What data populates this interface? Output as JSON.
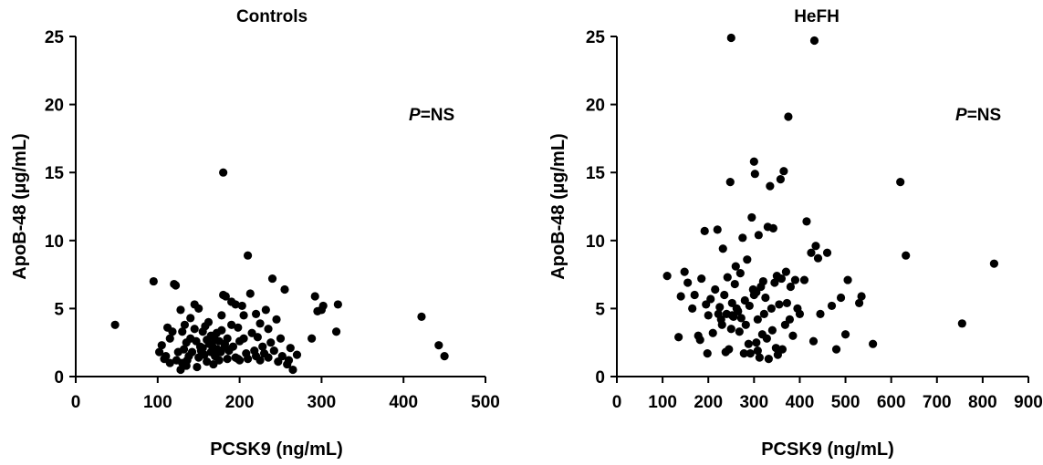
{
  "chart_data": [
    {
      "type": "scatter",
      "title": "Controls",
      "xlabel": "PCSK9 (ng/mL)",
      "ylabel": "ApoB-48 (µg/mL)",
      "xlim": [
        0,
        500
      ],
      "ylim": [
        0,
        25
      ],
      "xticks": [
        0,
        100,
        200,
        300,
        400,
        500
      ],
      "yticks": [
        0,
        5,
        10,
        15,
        20,
        25
      ],
      "annotation": {
        "italic": "P",
        "rest": "=NS"
      },
      "points_color": "#000000",
      "x": [
        48,
        95,
        102,
        105,
        108,
        110,
        112,
        115,
        115,
        118,
        120,
        122,
        123,
        125,
        128,
        128,
        130,
        130,
        132,
        133,
        135,
        135,
        136,
        138,
        140,
        140,
        142,
        145,
        145,
        147,
        148,
        150,
        150,
        152,
        153,
        155,
        155,
        157,
        158,
        160,
        160,
        162,
        163,
        165,
        165,
        167,
        168,
        170,
        170,
        172,
        173,
        175,
        175,
        177,
        178,
        180,
        180,
        182,
        183,
        185,
        185,
        187,
        190,
        190,
        192,
        195,
        195,
        198,
        200,
        200,
        203,
        205,
        205,
        208,
        210,
        210,
        213,
        215,
        218,
        220,
        220,
        222,
        225,
        225,
        228,
        230,
        232,
        235,
        235,
        238,
        240,
        242,
        245,
        247,
        250,
        252,
        255,
        258,
        260,
        262,
        265,
        270,
        288,
        292,
        295,
        300,
        302,
        318,
        320,
        422,
        443,
        450,
        178,
        182,
        198
      ],
      "y": [
        3.8,
        7.0,
        1.8,
        2.3,
        1.3,
        1.5,
        3.6,
        2.8,
        1.0,
        3.3,
        6.8,
        6.7,
        1.2,
        1.8,
        0.5,
        4.9,
        3.3,
        1.0,
        2.0,
        3.8,
        2.5,
        0.8,
        1.2,
        1.5,
        2.8,
        4.3,
        1.8,
        5.3,
        3.5,
        2.6,
        0.7,
        5.0,
        1.4,
        2.2,
        1.9,
        3.3,
        2.1,
        1.6,
        3.7,
        2.7,
        1.1,
        4.0,
        2.4,
        3.0,
        1.8,
        2.2,
        0.9,
        2.7,
        1.5,
        3.2,
        2.0,
        1.2,
        2.6,
        1.8,
        3.4,
        15.0,
        6.0,
        2.4,
        5.9,
        2.8,
        1.3,
        1.9,
        3.8,
        5.5,
        2.2,
        5.3,
        1.4,
        3.6,
        2.6,
        1.2,
        5.2,
        4.5,
        2.8,
        1.7,
        8.9,
        1.3,
        6.1,
        3.2,
        1.9,
        4.6,
        1.5,
        2.9,
        3.9,
        1.2,
        2.2,
        1.7,
        4.9,
        3.5,
        1.4,
        2.5,
        7.2,
        1.9,
        4.2,
        1.1,
        2.8,
        1.5,
        6.4,
        0.9,
        1.2,
        2.1,
        0.5,
        1.6,
        2.8,
        5.9,
        4.8,
        4.9,
        5.2,
        3.3,
        5.3,
        4.4,
        2.3,
        1.5,
        4.5,
        2.2,
        1.3
      ]
    },
    {
      "type": "scatter",
      "title": "HeFH",
      "xlabel": "PCSK9 (ng/mL)",
      "ylabel": "ApoB-48 (µg/mL)",
      "xlim": [
        0,
        900
      ],
      "ylim": [
        0,
        25
      ],
      "xticks": [
        0,
        100,
        200,
        300,
        400,
        500,
        600,
        700,
        800,
        900
      ],
      "yticks": [
        0,
        5,
        10,
        15,
        20,
        25
      ],
      "annotation": {
        "italic": "P",
        "rest": "=NS"
      },
      "points_color": "#000000",
      "x": [
        110,
        135,
        140,
        148,
        155,
        165,
        170,
        178,
        182,
        185,
        192,
        195,
        198,
        200,
        205,
        210,
        215,
        220,
        222,
        225,
        228,
        230,
        232,
        235,
        238,
        240,
        242,
        245,
        248,
        250,
        252,
        255,
        258,
        260,
        262,
        265,
        268,
        270,
        272,
        275,
        278,
        280,
        282,
        285,
        288,
        290,
        292,
        295,
        298,
        300,
        302,
        305,
        305,
        308,
        310,
        312,
        315,
        318,
        320,
        322,
        325,
        328,
        330,
        332,
        335,
        338,
        340,
        342,
        345,
        348,
        350,
        352,
        355,
        358,
        360,
        362,
        365,
        368,
        370,
        372,
        375,
        378,
        380,
        385,
        390,
        395,
        400,
        410,
        415,
        425,
        430,
        432,
        435,
        440,
        445,
        460,
        470,
        480,
        490,
        500,
        505,
        530,
        535,
        560,
        620,
        632,
        755,
        825,
        250,
        252,
        300,
        308
      ],
      "y": [
        7.4,
        2.9,
        5.9,
        7.7,
        6.9,
        5.0,
        6.0,
        3.0,
        2.7,
        7.2,
        10.7,
        5.3,
        1.7,
        4.5,
        5.7,
        3.2,
        6.4,
        10.8,
        4.6,
        5.1,
        4.2,
        3.8,
        9.4,
        6.0,
        1.8,
        4.6,
        7.3,
        2.0,
        14.3,
        3.5,
        5.4,
        4.4,
        6.8,
        8.1,
        5.0,
        4.8,
        3.3,
        7.6,
        4.3,
        10.2,
        1.7,
        5.6,
        3.8,
        8.6,
        2.4,
        5.2,
        1.7,
        11.7,
        6.4,
        15.8,
        14.9,
        2.5,
        6.2,
        4.2,
        10.4,
        1.4,
        6.6,
        3.1,
        7.0,
        4.6,
        5.8,
        2.8,
        11.0,
        1.3,
        14.0,
        5.0,
        3.4,
        10.9,
        6.9,
        2.1,
        7.4,
        1.6,
        5.3,
        14.5,
        7.2,
        2.0,
        15.1,
        3.8,
        7.7,
        5.4,
        19.1,
        4.2,
        6.6,
        3.0,
        7.1,
        5.0,
        4.6,
        7.1,
        11.4,
        9.1,
        2.6,
        24.7,
        9.6,
        8.7,
        4.6,
        9.1,
        5.2,
        2.0,
        5.8,
        3.1,
        7.1,
        5.4,
        5.9,
        2.4,
        14.3,
        8.9,
        3.9,
        8.3,
        24.9,
        4.5,
        6.0,
        1.9
      ]
    }
  ]
}
